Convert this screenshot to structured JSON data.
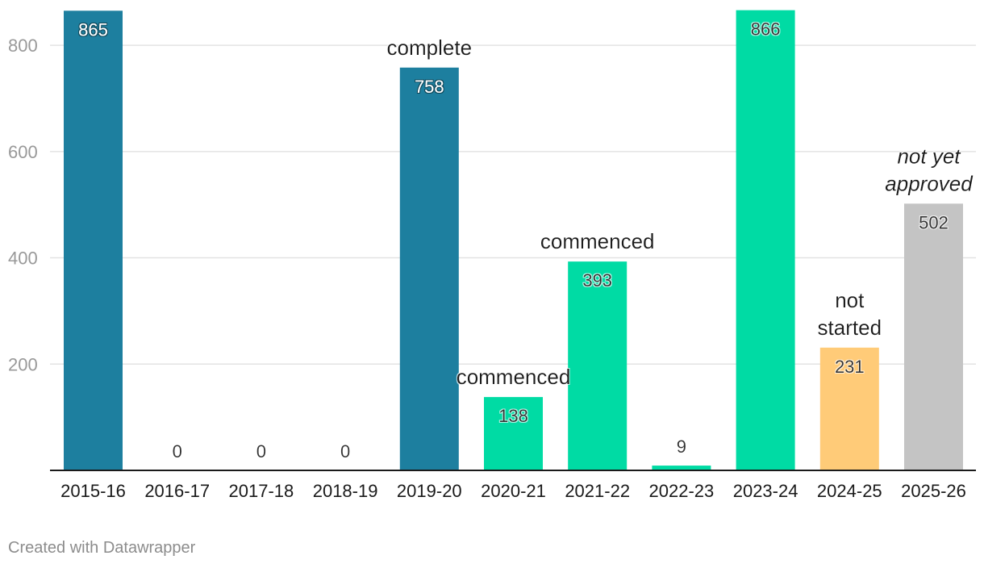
{
  "chart_data": {
    "type": "bar",
    "categories": [
      "2015-16",
      "2016-17",
      "2017-18",
      "2018-19",
      "2019-20",
      "2020-21",
      "2021-22",
      "2022-23",
      "2023-24",
      "2024-25",
      "2025-26"
    ],
    "values": [
      865,
      0,
      0,
      0,
      758,
      138,
      393,
      9,
      866,
      231,
      502
    ],
    "bar_colors": [
      "#1d7f9f",
      "#1d7f9f",
      "#1d7f9f",
      "#1d7f9f",
      "#1d7f9f",
      "#00dba4",
      "#00dba4",
      "#00dba4",
      "#00dba4",
      "#ffcb78",
      "#c4c4c4"
    ],
    "y_ticks": [
      200,
      400,
      600,
      800
    ],
    "ylim": [
      0,
      870
    ],
    "grid": true,
    "annotations": [
      {
        "category": "2019-20",
        "lines": [
          "complete"
        ],
        "italic": false
      },
      {
        "category": "2020-21",
        "lines": [
          "commenced"
        ],
        "italic": false
      },
      {
        "category": "2021-22",
        "lines": [
          "commenced"
        ],
        "italic": false
      },
      {
        "category": "2024-25",
        "lines": [
          "not",
          "started"
        ],
        "italic": false
      },
      {
        "category": "2025-26",
        "lines": [
          "not yet",
          "approved"
        ],
        "italic": true
      }
    ]
  },
  "footer": {
    "credit": "Created with Datawrapper"
  }
}
